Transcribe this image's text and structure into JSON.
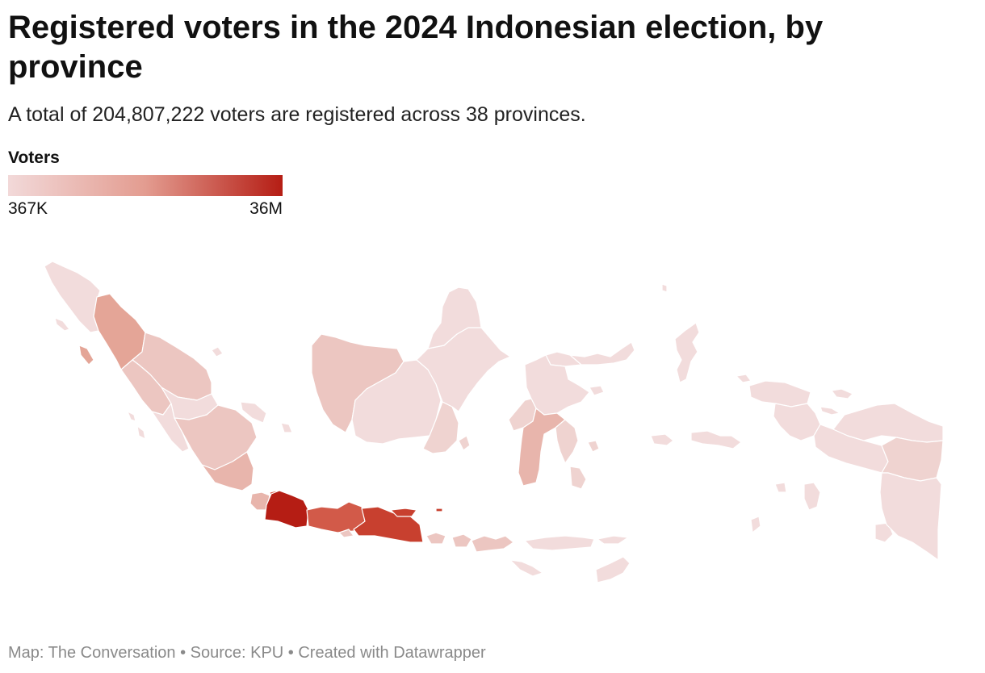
{
  "header": {
    "title": "Registered voters in the 2024 Indonesian election, by province",
    "subtitle": "A total of 204,807,222 voters are registered across 38 provinces."
  },
  "legend": {
    "title": "Voters",
    "min_label": "367K",
    "max_label": "36M",
    "color_low": "#f2d9d9",
    "color_mid": "#e39c90",
    "color_high": "#b51d14"
  },
  "footer": {
    "credit": "Map: The Conversation • Source: KPU • Created with Datawrapper"
  },
  "colors": {
    "lightest": "#f2dcdc",
    "light": "#efd3d0",
    "light_medium": "#ecc6c1",
    "medium_light": "#e8b5ac",
    "medium": "#e4a597",
    "medium_dark": "#d25a49",
    "dark": "#c8402f",
    "darkest": "#b51d14"
  }
}
